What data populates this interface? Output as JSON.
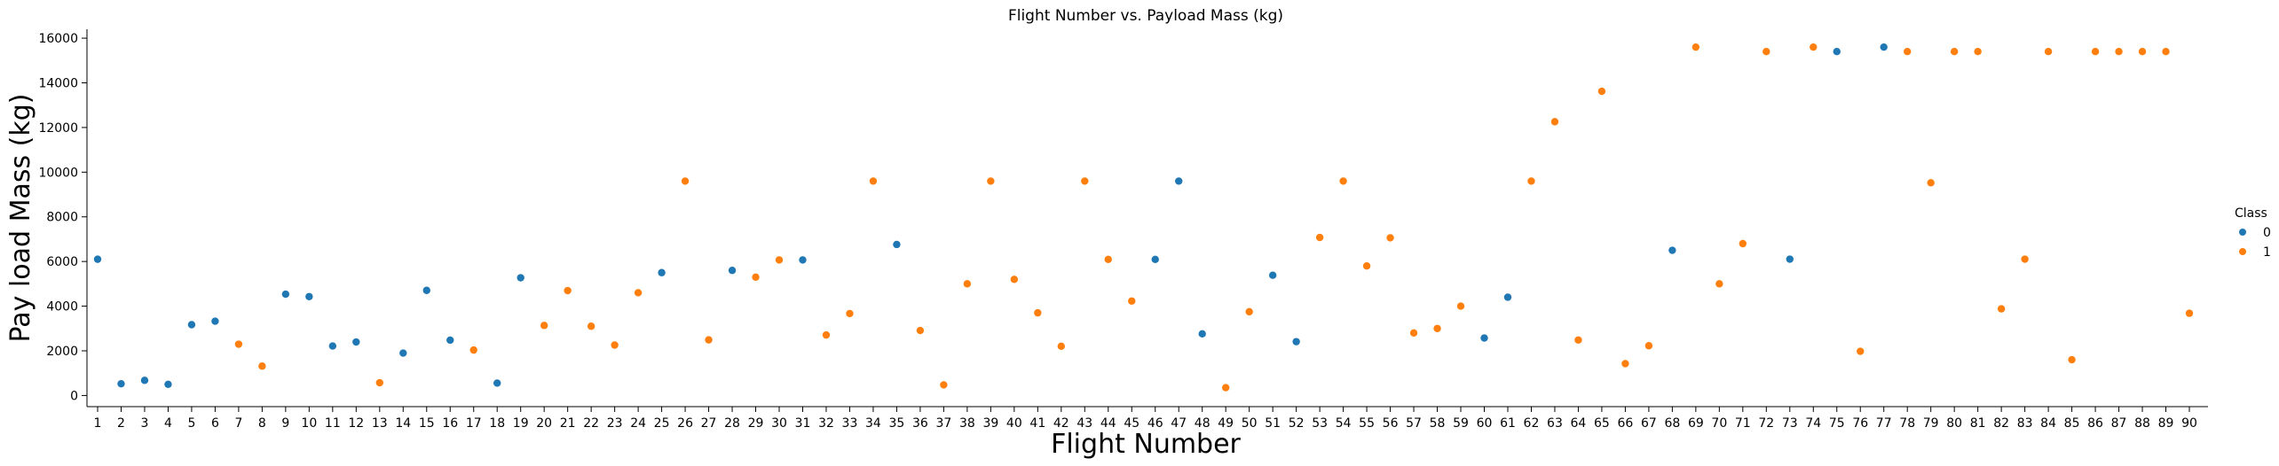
{
  "chart_data": {
    "type": "scatter",
    "title": "Flight Number vs. Payload Mass (kg)",
    "xlabel": "Flight Number",
    "ylabel": "Pay load Mass (kg)",
    "x_categories": [
      1,
      2,
      3,
      4,
      5,
      6,
      7,
      8,
      9,
      10,
      11,
      12,
      13,
      14,
      15,
      16,
      17,
      18,
      19,
      20,
      21,
      22,
      23,
      24,
      25,
      26,
      27,
      28,
      29,
      30,
      31,
      32,
      33,
      34,
      35,
      36,
      37,
      38,
      39,
      40,
      41,
      42,
      43,
      44,
      45,
      46,
      47,
      48,
      49,
      50,
      51,
      52,
      53,
      54,
      55,
      56,
      57,
      58,
      59,
      60,
      61,
      62,
      63,
      64,
      65,
      66,
      67,
      68,
      69,
      70,
      71,
      72,
      73,
      74,
      75,
      76,
      77,
      78,
      79,
      80,
      81,
      82,
      83,
      84,
      85,
      86,
      87,
      88,
      89,
      90
    ],
    "y_ticks": [
      0,
      2000,
      4000,
      6000,
      8000,
      10000,
      12000,
      14000,
      16000
    ],
    "ylim": [
      -500,
      16400
    ],
    "legend": {
      "title": "Class",
      "position": "right",
      "entries": [
        {
          "label": "0",
          "color": "#1f77b4"
        },
        {
          "label": "1",
          "color": "#ff7f0e"
        }
      ]
    },
    "grid": false,
    "points": [
      [
        1,
        6100,
        0
      ],
      [
        2,
        525,
        0
      ],
      [
        3,
        677,
        0
      ],
      [
        4,
        500,
        0
      ],
      [
        5,
        3170,
        0
      ],
      [
        6,
        3325,
        0
      ],
      [
        7,
        2296,
        1
      ],
      [
        8,
        1316,
        1
      ],
      [
        9,
        4535,
        0
      ],
      [
        10,
        4428,
        0
      ],
      [
        11,
        2216,
        0
      ],
      [
        12,
        2395,
        0
      ],
      [
        13,
        570,
        1
      ],
      [
        14,
        1898,
        0
      ],
      [
        15,
        4707,
        0
      ],
      [
        16,
        2477,
        0
      ],
      [
        17,
        2034,
        1
      ],
      [
        18,
        553,
        0
      ],
      [
        19,
        5271,
        0
      ],
      [
        20,
        3136,
        1
      ],
      [
        21,
        4696,
        1
      ],
      [
        22,
        3100,
        1
      ],
      [
        23,
        2257,
        1
      ],
      [
        24,
        4600,
        1
      ],
      [
        25,
        5500,
        0
      ],
      [
        26,
        9600,
        1
      ],
      [
        27,
        2490,
        1
      ],
      [
        28,
        5600,
        0
      ],
      [
        29,
        5300,
        1
      ],
      [
        30,
        6070,
        1
      ],
      [
        31,
        6070,
        0
      ],
      [
        32,
        2708,
        1
      ],
      [
        33,
        3669,
        1
      ],
      [
        34,
        9600,
        1
      ],
      [
        35,
        6761,
        0
      ],
      [
        36,
        2910,
        1
      ],
      [
        37,
        475,
        1
      ],
      [
        38,
        5000,
        1
      ],
      [
        39,
        9600,
        1
      ],
      [
        40,
        5200,
        1
      ],
      [
        41,
        3700,
        1
      ],
      [
        42,
        2205,
        1
      ],
      [
        43,
        9600,
        1
      ],
      [
        44,
        6092,
        1
      ],
      [
        45,
        4230,
        1
      ],
      [
        46,
        6092,
        0
      ],
      [
        47,
        9600,
        0
      ],
      [
        48,
        2760,
        0
      ],
      [
        49,
        350,
        1
      ],
      [
        50,
        3750,
        1
      ],
      [
        51,
        5383,
        0
      ],
      [
        52,
        2410,
        0
      ],
      [
        53,
        7076,
        1
      ],
      [
        54,
        9600,
        1
      ],
      [
        55,
        5800,
        1
      ],
      [
        56,
        7060,
        1
      ],
      [
        57,
        2800,
        1
      ],
      [
        58,
        3000,
        1
      ],
      [
        59,
        4000,
        1
      ],
      [
        60,
        2573,
        0
      ],
      [
        61,
        4400,
        0
      ],
      [
        62,
        9600,
        1
      ],
      [
        63,
        12259,
        1
      ],
      [
        64,
        2482,
        1
      ],
      [
        65,
        13620,
        1
      ],
      [
        66,
        1425,
        1
      ],
      [
        67,
        2227,
        1
      ],
      [
        68,
        6500,
        0
      ],
      [
        69,
        15600,
        1
      ],
      [
        70,
        5000,
        1
      ],
      [
        71,
        6800,
        1
      ],
      [
        72,
        15400,
        1
      ],
      [
        73,
        6104,
        0
      ],
      [
        74,
        15600,
        1
      ],
      [
        75,
        15400,
        0
      ],
      [
        76,
        1977,
        1
      ],
      [
        77,
        15600,
        0
      ],
      [
        78,
        15400,
        1
      ],
      [
        79,
        9525,
        1
      ],
      [
        80,
        15400,
        1
      ],
      [
        81,
        15400,
        1
      ],
      [
        82,
        3880,
        1
      ],
      [
        83,
        6104,
        1
      ],
      [
        84,
        15400,
        1
      ],
      [
        85,
        1600,
        1
      ],
      [
        86,
        15400,
        1
      ],
      [
        87,
        15400,
        1
      ],
      [
        88,
        15400,
        1
      ],
      [
        89,
        15400,
        1
      ],
      [
        90,
        3681,
        1
      ]
    ]
  }
}
